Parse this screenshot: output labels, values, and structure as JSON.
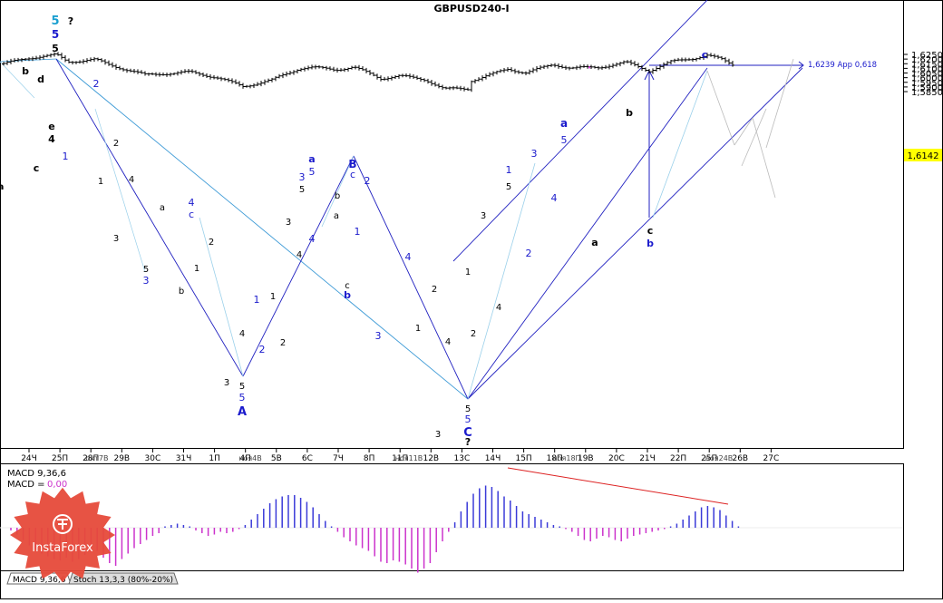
{
  "title": "GBPUSD240-I",
  "price_axis": {
    "ticks": [
      "1,6250",
      "1,6200",
      "1,6150",
      "1,6100",
      "1,6050",
      "1,6000",
      "1,5950",
      "1,5900",
      "1,5850"
    ],
    "current_price": "1,6142"
  },
  "annotation_target": "1,6239 App 0,618",
  "time_axis": [
    "24Ч",
    "25П",
    "28П",
    "29В",
    "30С",
    "31Ч",
    "1П",
    "4П",
    "5В",
    "6С",
    "7Ч",
    "8П",
    "11П",
    "12В",
    "13С",
    "14Ч",
    "15П",
    "18П",
    "19В",
    "20С",
    "21Ч",
    "22П",
    "25П",
    "26В",
    "27С"
  ],
  "time_axis_overlaps": [
    "окт7В",
    "ноя4В",
    "ноя11В",
    "ноя18П",
    "ноя24В"
  ],
  "indicator": {
    "macd_label": "MACD 9,36,6",
    "macd_value_prefix": "MACD =",
    "macd_value": "0,00"
  },
  "tabs": [
    "MACD 9,36,6",
    "Stoch 13,3,3 (80%-20%)"
  ],
  "logo_text": "InstaForex",
  "wave_labels": [
    {
      "t": "5",
      "c": "cyan"
    },
    {
      "t": "5",
      "c": "blue"
    },
    {
      "t": "5",
      "c": "black"
    },
    {
      "t": "?",
      "c": "black"
    },
    {
      "t": "b",
      "c": "black"
    },
    {
      "t": "d",
      "c": "black"
    },
    {
      "t": "e",
      "c": "black"
    },
    {
      "t": "4",
      "c": "black"
    },
    {
      "t": "c",
      "c": "black"
    },
    {
      "t": "a",
      "c": "black"
    },
    {
      "t": "1",
      "c": "blue"
    },
    {
      "t": "2",
      "c": "blue"
    },
    {
      "t": "2",
      "c": "black"
    },
    {
      "t": "1",
      "c": "black"
    },
    {
      "t": "4",
      "c": "black"
    },
    {
      "t": "3",
      "c": "black"
    },
    {
      "t": "5",
      "c": "black"
    },
    {
      "t": "3",
      "c": "blue"
    },
    {
      "t": "a",
      "c": "black"
    },
    {
      "t": "4",
      "c": "blue"
    },
    {
      "t": "c",
      "c": "blue"
    },
    {
      "t": "2",
      "c": "black"
    },
    {
      "t": "1",
      "c": "black"
    },
    {
      "t": "b",
      "c": "black"
    },
    {
      "t": "3",
      "c": "black"
    },
    {
      "t": "4",
      "c": "black"
    },
    {
      "t": "5",
      "c": "black"
    },
    {
      "t": "5",
      "c": "blue"
    },
    {
      "t": "A",
      "c": "blue"
    },
    {
      "t": "1",
      "c": "blue"
    },
    {
      "t": "1",
      "c": "black"
    },
    {
      "t": "2",
      "c": "blue"
    },
    {
      "t": "2",
      "c": "black"
    },
    {
      "t": "3",
      "c": "blue"
    },
    {
      "t": "5",
      "c": "black"
    },
    {
      "t": "3",
      "c": "black"
    },
    {
      "t": "a",
      "c": "blue"
    },
    {
      "t": "5",
      "c": "blue"
    },
    {
      "t": "4",
      "c": "blue"
    },
    {
      "t": "4",
      "c": "black"
    },
    {
      "t": "b",
      "c": "black"
    },
    {
      "t": "B",
      "c": "blue"
    },
    {
      "t": "c",
      "c": "blue"
    },
    {
      "t": "2",
      "c": "blue"
    },
    {
      "t": "a",
      "c": "black"
    },
    {
      "t": "1",
      "c": "blue"
    },
    {
      "t": "c",
      "c": "black"
    },
    {
      "t": "b",
      "c": "blue"
    },
    {
      "t": "4",
      "c": "blue"
    },
    {
      "t": "2",
      "c": "black"
    },
    {
      "t": "1",
      "c": "black"
    },
    {
      "t": "3",
      "c": "blue"
    },
    {
      "t": "4",
      "c": "black"
    },
    {
      "t": "3",
      "c": "black"
    },
    {
      "t": "5",
      "c": "black"
    },
    {
      "t": "5",
      "c": "blue"
    },
    {
      "t": "C",
      "c": "blue"
    },
    {
      "t": "?",
      "c": "black"
    },
    {
      "t": "1",
      "c": "black"
    },
    {
      "t": "2",
      "c": "black"
    },
    {
      "t": "3",
      "c": "black"
    },
    {
      "t": "4",
      "c": "black"
    },
    {
      "t": "5",
      "c": "black"
    },
    {
      "t": "1",
      "c": "blue"
    },
    {
      "t": "2",
      "c": "blue"
    },
    {
      "t": "3",
      "c": "blue"
    },
    {
      "t": "4",
      "c": "blue"
    },
    {
      "t": "5",
      "c": "blue"
    },
    {
      "t": "a",
      "c": "blue"
    },
    {
      "t": "a",
      "c": "black"
    },
    {
      "t": "b",
      "c": "black"
    },
    {
      "t": "c",
      "c": "black"
    },
    {
      "t": "b",
      "c": "blue"
    },
    {
      "t": "c",
      "c": "blue"
    }
  ],
  "colors": {
    "cyan": "#1a9fd0",
    "blue": "#1a1acc",
    "black": "#000000",
    "channel": "#2020c0",
    "thin_cyan": "#3d9ad6",
    "macd_pos": "#3a3ad8",
    "macd_neg": "#cc33cc",
    "divergence": "#dd2222",
    "price_box": "#ffff00",
    "logo": "#e64a3a"
  },
  "chart_data": {
    "type": "candlestick_ohlc_with_macd",
    "ylim": [
      1.5815,
      1.6275
    ],
    "current_price": 1.6142,
    "target_level": 1.6239,
    "key_points": [
      {
        "label": "5",
        "time": "25П",
        "price": 1.6245
      },
      {
        "label": "A",
        "time": "4П",
        "price": 1.5905
      },
      {
        "label": "B",
        "time": "7Ч",
        "price": 1.6115
      },
      {
        "label": "C",
        "time": "13С",
        "price": 1.5878
      },
      {
        "label": "b",
        "time": "21Ч",
        "price": 1.6075
      },
      {
        "label": "c",
        "time": "22П",
        "price": 1.6239
      }
    ],
    "macd_histogram": [
      -0.2,
      -0.5,
      -0.9,
      -1.3,
      -1.6,
      -1.9,
      -2.1,
      -2.3,
      -2.4,
      -2.2,
      -2.5,
      -2.3,
      -2.0,
      -1.8,
      -1.7,
      -2.2,
      -2.6,
      -2.8,
      -2.3,
      -1.9,
      -1.5,
      -1.2,
      -0.9,
      -0.6,
      -0.4,
      0.1,
      0.2,
      0.3,
      0.2,
      0.1,
      -0.2,
      -0.4,
      -0.6,
      -0.5,
      -0.3,
      -0.4,
      -0.3,
      -0.1,
      0.2,
      0.6,
      1.0,
      1.4,
      1.8,
      2.1,
      2.3,
      2.4,
      2.4,
      2.2,
      1.9,
      1.5,
      1.0,
      0.5,
      0.1,
      -0.3,
      -0.7,
      -1.0,
      -1.3,
      -1.5,
      -1.7,
      -2.1,
      -2.5,
      -2.6,
      -2.4,
      -2.5,
      -2.7,
      -3.0,
      -3.3,
      -3.0,
      -2.6,
      -1.8,
      -1.0,
      -0.3,
      0.4,
      1.2,
      1.9,
      2.5,
      2.9,
      3.1,
      3.0,
      2.7,
      2.3,
      2.0,
      1.6,
      1.2,
      1.0,
      0.8,
      0.6,
      0.4,
      0.2,
      0.1,
      -0.1,
      -0.3,
      -0.6,
      -0.9,
      -1.0,
      -0.8,
      -0.6,
      -0.7,
      -0.9,
      -1.0,
      -0.8,
      -0.6,
      -0.5,
      -0.4,
      -0.3,
      -0.2,
      -0.1,
      0.1,
      0.3,
      0.6,
      0.9,
      1.2,
      1.5,
      1.6,
      1.5,
      1.3,
      0.9,
      0.5,
      0.1
    ]
  }
}
